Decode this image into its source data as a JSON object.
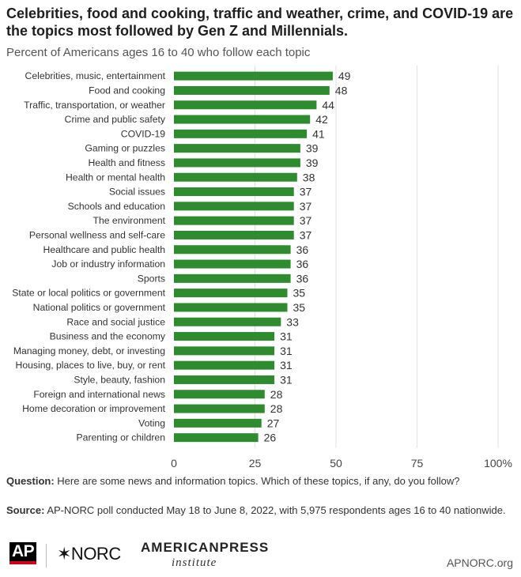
{
  "header": {
    "title": "Celebrities, food and cooking, traffic and weather, crime, and COVID-19 are the topics most followed by Gen Z and Millennials.",
    "subtitle": "Percent of Americans ages 16 to 40 who follow each topic"
  },
  "chart_data": {
    "type": "bar",
    "orientation": "horizontal",
    "title": "Celebrities, food and cooking, traffic and weather, crime, and COVID-19 are the topics most followed by Gen Z and Millennials.",
    "categories": [
      "Celebrities, music, entertainment",
      "Food and cooking",
      "Traffic, transportation, or weather",
      "Crime and public safety",
      "COVID-19",
      "Gaming or puzzles",
      "Health and fitness",
      "Health or mental health",
      "Social issues",
      "Schools and education",
      "The environment",
      "Personal wellness and self-care",
      "Healthcare and public health",
      "Job or industry information",
      "Sports",
      "State or local politics or government",
      "National politics or government",
      "Race and social justice",
      "Business and the economy",
      "Managing money, debt, or investing",
      "Housing, places to live, buy, or rent",
      "Style, beauty, fashion",
      "Foreign and international news",
      "Home decoration or improvement",
      "Voting",
      "Parenting or children"
    ],
    "values": [
      49,
      48,
      44,
      42,
      41,
      39,
      39,
      38,
      37,
      37,
      37,
      37,
      36,
      36,
      36,
      35,
      35,
      33,
      31,
      31,
      31,
      31,
      28,
      28,
      27,
      26
    ],
    "xlim": [
      0,
      100
    ],
    "xticks": [
      0,
      25,
      50,
      75,
      100
    ],
    "xtick_labels": [
      "0",
      "25",
      "50",
      "75",
      "100%"
    ],
    "bar_color": "#2e8b2e",
    "grid": true
  },
  "footer": {
    "question_label": "Question:",
    "question_text": "Here are some news and information topics. Which of these topics, if any, do you follow?",
    "source_label": "Source:",
    "source_text": "AP-NORC poll conducted May 18 to June 8, 2022, with 5,975 respondents ages 16 to 40 nationwide.",
    "logo_ap": "AP",
    "logo_norc": "✶NORC",
    "logo_api_top": "AMERICANPRESS",
    "logo_api_bottom": "institute",
    "site": "APNORC.org"
  }
}
